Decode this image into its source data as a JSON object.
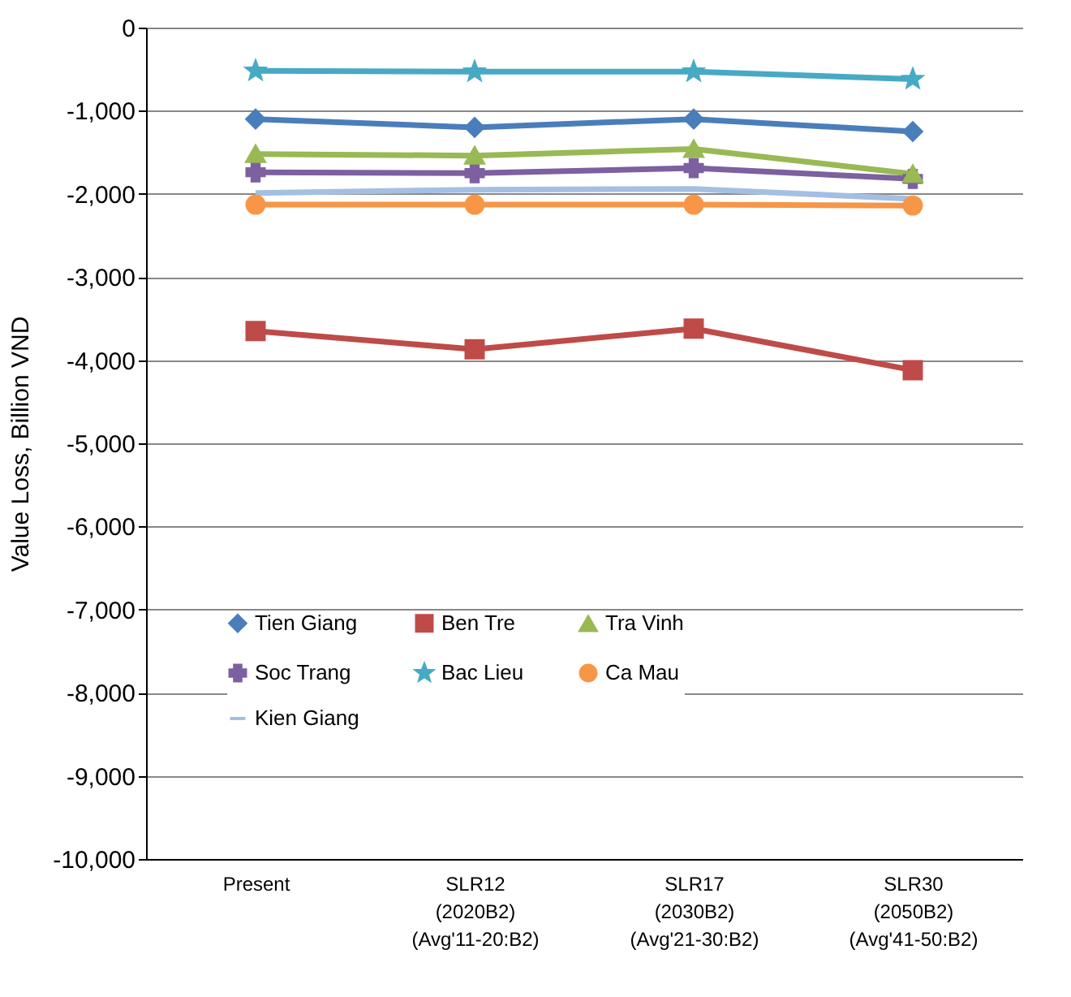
{
  "chart_data": {
    "type": "line",
    "ylabel": "Value Loss, Billion VND",
    "categories": [
      "Present",
      "SLR12\n(2020B2)\n(Avg'11-20:B2)",
      "SLR17\n(2030B2)\n(Avg'21-30:B2)",
      "SLR30\n(2050B2)\n(Avg'41-50:B2)"
    ],
    "series": [
      {
        "name": "Tien Giang",
        "color": "#4a7ebb",
        "marker": "diamond",
        "values": [
          -1100,
          -1200,
          -1100,
          -1250
        ]
      },
      {
        "name": "Ben Tre",
        "color": "#be4b48",
        "marker": "square",
        "values": [
          -3650,
          -3870,
          -3620,
          -4120
        ]
      },
      {
        "name": "Tra Vinh",
        "color": "#98b954",
        "marker": "triangle",
        "values": [
          -1520,
          -1540,
          -1460,
          -1760
        ]
      },
      {
        "name": "Soc Trang",
        "color": "#7d60a0",
        "marker": "cross",
        "values": [
          -1740,
          -1750,
          -1690,
          -1820
        ]
      },
      {
        "name": "Bac Lieu",
        "color": "#46aac5",
        "marker": "star",
        "values": [
          -520,
          -530,
          -530,
          -620
        ]
      },
      {
        "name": "Ca Mau",
        "color": "#f79646",
        "marker": "circle",
        "values": [
          -2130,
          -2130,
          -2130,
          -2140
        ]
      },
      {
        "name": "Kien Giang",
        "color": "#a5bfe3",
        "marker": "none",
        "values": [
          -1990,
          -1950,
          -1940,
          -2060
        ]
      }
    ],
    "ylim": [
      -10000,
      0
    ],
    "yticks": [
      {
        "value": -10000,
        "label": "-10,000"
      },
      {
        "value": -9000,
        "label": "-9,000"
      },
      {
        "value": -8000,
        "label": "-8,000"
      },
      {
        "value": -7000,
        "label": "-7,000"
      },
      {
        "value": -6000,
        "label": "-6,000"
      },
      {
        "value": -5000,
        "label": "-5,000"
      },
      {
        "value": -4000,
        "label": "-4,000"
      },
      {
        "value": -3000,
        "label": "-3,000"
      },
      {
        "value": -2000,
        "label": "-2,000"
      },
      {
        "value": -1000,
        "label": "-1,000"
      },
      0
    ],
    "grid": "y",
    "legend": "bottom",
    "line_style": "solid"
  }
}
